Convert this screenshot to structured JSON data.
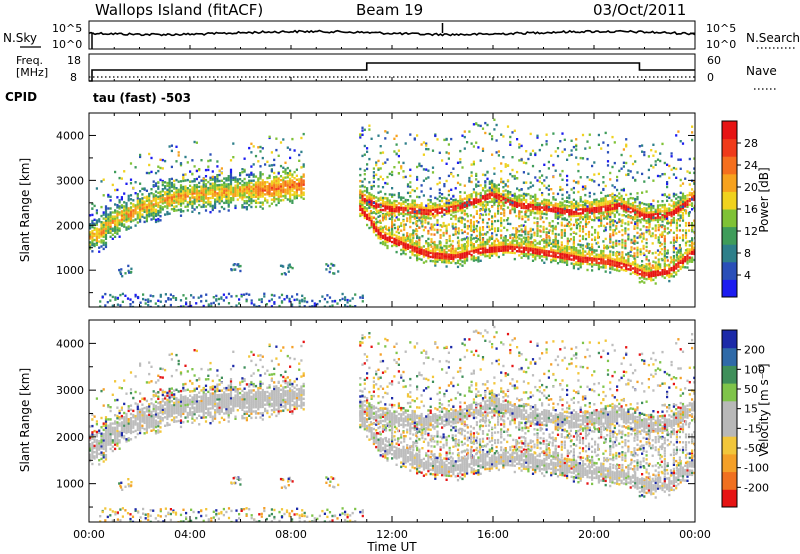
{
  "header": {
    "station": "Wallops Island (fitACF)",
    "beam": "Beam 19",
    "date": "03/Oct/2011"
  },
  "noise_panel": {
    "left_label": "N.Sky",
    "left_ticks": [
      "10^5",
      "10^0"
    ],
    "right_ticks": [
      "10^5",
      "10^0"
    ],
    "right_label": "N.Search"
  },
  "freq_panel": {
    "left_label_1": "Freq.",
    "left_label_2": "[MHz]",
    "left_ticks": [
      "18",
      "8"
    ],
    "right_ticks": [
      "60",
      "0"
    ],
    "right_label": "Nave",
    "cpid_label": "CPID",
    "cpid_value": "tau (fast) -503"
  },
  "chart_data": [
    {
      "type": "heatmap",
      "panel": "power",
      "ylabel": "Slant Range [km]",
      "yticks": [
        "1000",
        "2000",
        "3000",
        "4000"
      ],
      "ylim": [
        180,
        4500
      ],
      "colorbar": {
        "label": "Power [dB]",
        "ticks": [
          "4",
          "8",
          "12",
          "16",
          "20",
          "24",
          "28"
        ],
        "colors": [
          "#1c1cf0",
          "#2a4fb8",
          "#2e7f8a",
          "#3f9c5a",
          "#7fc236",
          "#f0d21e",
          "#f7a21e",
          "#f56f1e",
          "#ef3a1a",
          "#e61414"
        ]
      },
      "echo_bands": [
        {
          "name": "morning",
          "t": [
            0,
            0.5,
            1,
            2,
            3,
            4,
            5,
            6,
            7,
            8,
            8.5
          ],
          "range": [
            1750,
            1900,
            2150,
            2400,
            2600,
            2700,
            2750,
            2800,
            2820,
            2900,
            2950
          ]
        },
        {
          "name": "evening-upper",
          "t": [
            10.7,
            11.5,
            12.5,
            13.5,
            14.5,
            15.5,
            16,
            16.5,
            17,
            18,
            19,
            20,
            21,
            22,
            23,
            24
          ],
          "range": [
            2700,
            2450,
            2400,
            2350,
            2450,
            2650,
            2750,
            2600,
            2500,
            2450,
            2350,
            2400,
            2500,
            2250,
            2300,
            2700
          ]
        },
        {
          "name": "evening-lower",
          "t": [
            10.7,
            11.5,
            12.5,
            13.5,
            14.5,
            15.5,
            16.5,
            17.5,
            18.5,
            19.5,
            20.5,
            21.5,
            22,
            23,
            24
          ],
          "range": [
            2450,
            1850,
            1600,
            1400,
            1350,
            1500,
            1550,
            1500,
            1400,
            1300,
            1250,
            1100,
            950,
            1050,
            1500
          ]
        }
      ]
    },
    {
      "type": "heatmap",
      "panel": "velocity",
      "ylabel": "Slant Range [km]",
      "yticks": [
        "1000",
        "2000",
        "3000",
        "4000"
      ],
      "ylim": [
        180,
        4500
      ],
      "xticks": [
        "00:00",
        "04:00",
        "08:00",
        "12:00",
        "16:00",
        "20:00",
        "00:00"
      ],
      "xlim": [
        0,
        24
      ],
      "xlabel": "Time UT",
      "colorbar": {
        "label": "Velocity [m s⁻¹]",
        "ticks": [
          "200",
          "100",
          "50",
          "15",
          "-15",
          "-50",
          "-100",
          "-200"
        ],
        "colors": [
          "#1c2aa8",
          "#2f6aa8",
          "#3f8f5a",
          "#7fc44a",
          "#b8b8b8",
          "#b8b8b8",
          "#f2c63a",
          "#f4a028",
          "#f07020",
          "#e61414"
        ]
      }
    }
  ]
}
